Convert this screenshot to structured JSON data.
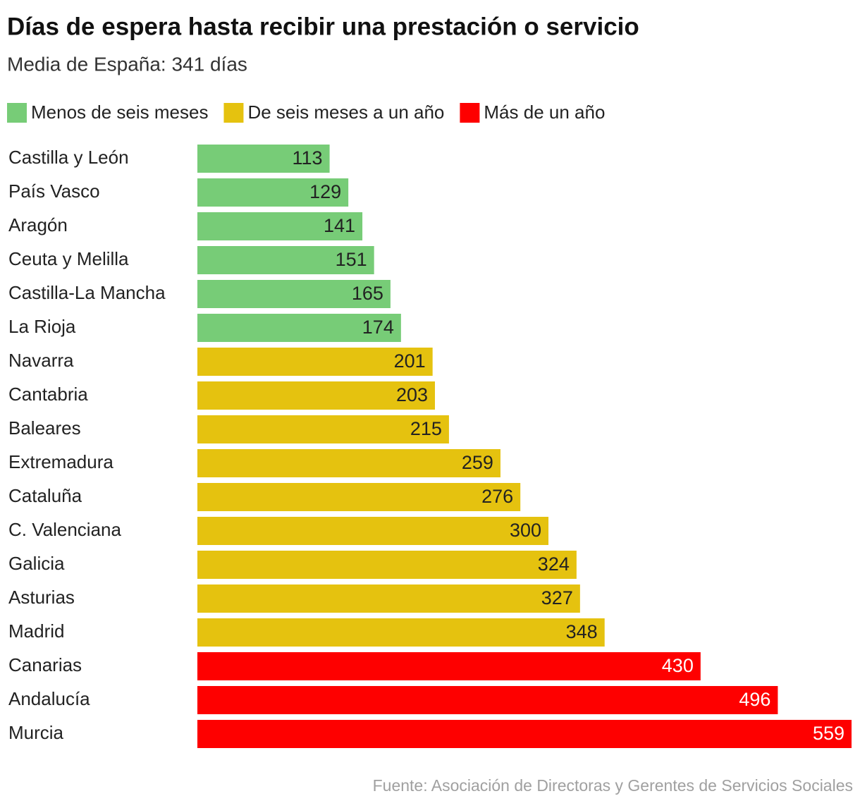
{
  "chart_data": {
    "type": "bar",
    "orientation": "horizontal",
    "title": "Días de espera hasta recibir una prestación o servicio",
    "subtitle": "Media de España: 341 días",
    "source": "Fuente: Asociación de Directoras y Gerentes de Servicios Sociales",
    "categories": [
      "Castilla y León",
      "País Vasco",
      "Aragón",
      "Ceuta y Melilla",
      "Castilla-La Mancha",
      "La Rioja",
      "Navarra",
      "Cantabria",
      "Baleares",
      "Extremadura",
      "Cataluña",
      "C. Valenciana",
      "Galicia",
      "Asturias",
      "Madrid",
      "Canarias",
      "Andalucía",
      "Murcia"
    ],
    "series": [
      {
        "name": "Menos de seis meses",
        "color": "#77cc77",
        "values": [
          113,
          129,
          141,
          151,
          165,
          174,
          null,
          null,
          null,
          null,
          null,
          null,
          null,
          null,
          null,
          null,
          null,
          null
        ]
      },
      {
        "name": "De seis meses a un año",
        "color": "#e5c20f",
        "values": [
          null,
          null,
          null,
          null,
          null,
          null,
          201,
          203,
          215,
          259,
          276,
          300,
          324,
          327,
          348,
          null,
          null,
          null
        ]
      },
      {
        "name": "Más de un año",
        "color": "#fe0000",
        "values": [
          null,
          null,
          null,
          null,
          null,
          null,
          null,
          null,
          null,
          null,
          null,
          null,
          null,
          null,
          null,
          430,
          496,
          559
        ]
      }
    ]
  }
}
